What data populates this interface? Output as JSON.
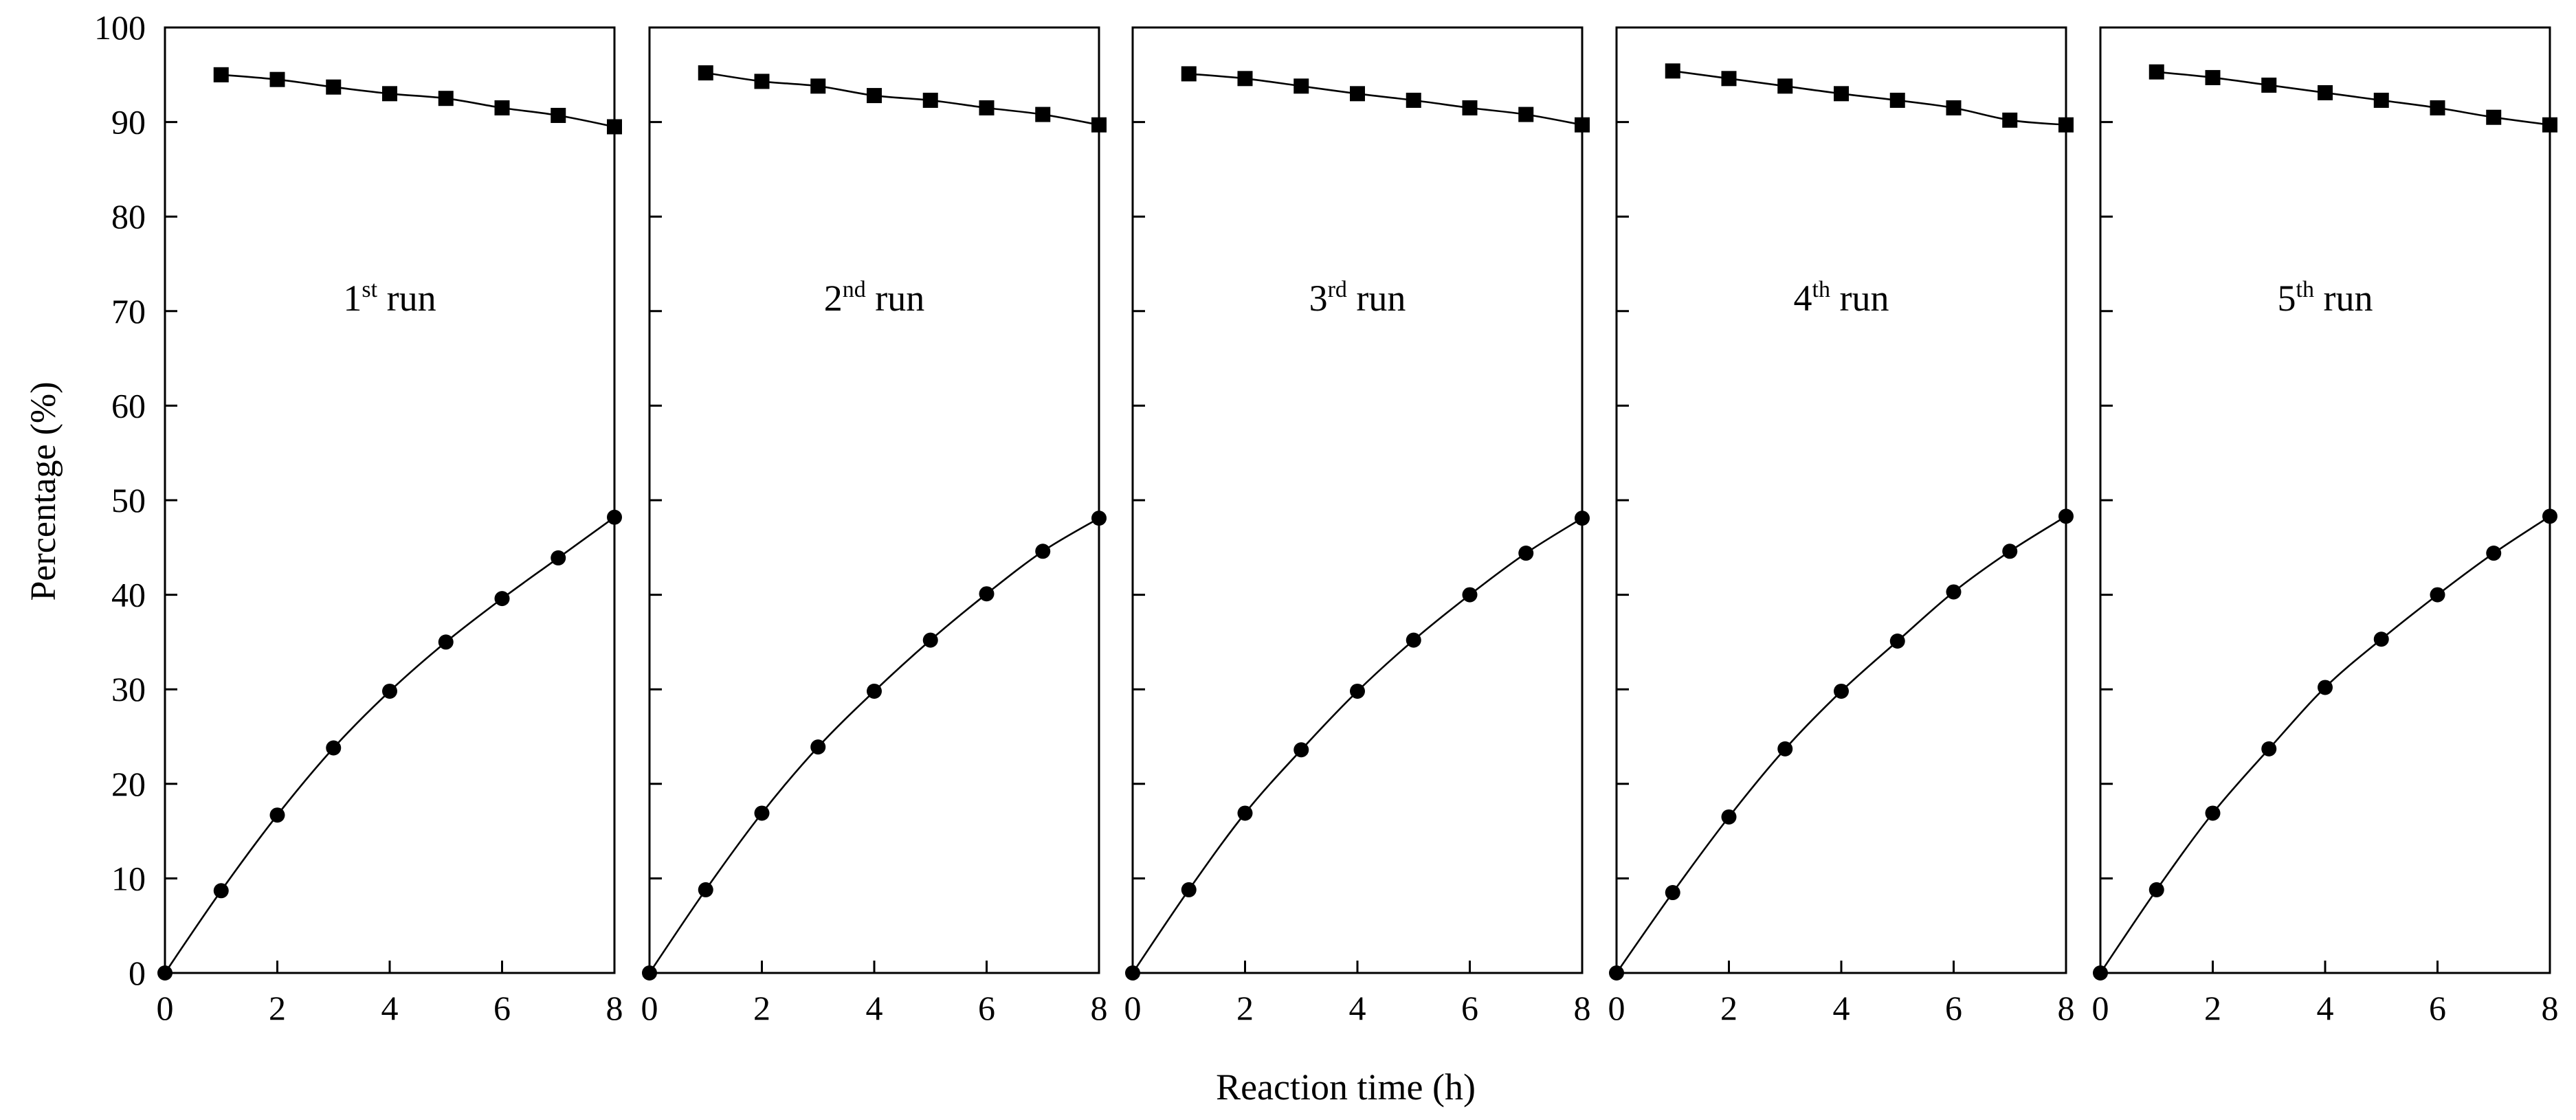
{
  "chart_data": {
    "type": "line",
    "ylabel": "Percentage (%)",
    "xlabel": "Reaction time (h)",
    "ylim": [
      0,
      100
    ],
    "xlim": [
      0,
      8
    ],
    "y_ticks": [
      "0",
      "10",
      "20",
      "30",
      "40",
      "50",
      "60",
      "70",
      "80",
      "90",
      "100"
    ],
    "x_ticks": [
      "0",
      "2",
      "4",
      "6",
      "8"
    ],
    "panels": [
      {
        "run_number": "1",
        "run_suffix": "st",
        "run_word": "run",
        "series": [
          {
            "name": "squares",
            "marker": "square",
            "x": [
              1,
              2,
              3,
              4,
              5,
              6,
              7,
              8
            ],
            "values": [
              95.0,
              94.5,
              93.7,
              93.0,
              92.5,
              91.5,
              90.7,
              89.5
            ]
          },
          {
            "name": "circles",
            "marker": "circle",
            "x": [
              0,
              1,
              2,
              3,
              4,
              5,
              6,
              7,
              8
            ],
            "values": [
              0,
              8.7,
              16.7,
              23.8,
              29.8,
              35.0,
              39.6,
              43.9,
              48.2
            ]
          }
        ]
      },
      {
        "run_number": "2",
        "run_suffix": "nd",
        "run_word": "run",
        "series": [
          {
            "name": "squares",
            "marker": "square",
            "x": [
              1,
              2,
              3,
              4,
              5,
              6,
              7,
              8
            ],
            "values": [
              95.2,
              94.3,
              93.8,
              92.8,
              92.3,
              91.5,
              90.8,
              89.7
            ]
          },
          {
            "name": "circles",
            "marker": "circle",
            "x": [
              0,
              1,
              2,
              3,
              4,
              5,
              6,
              7,
              8
            ],
            "values": [
              0,
              8.8,
              16.9,
              23.9,
              29.8,
              35.2,
              40.1,
              44.6,
              48.1
            ]
          }
        ]
      },
      {
        "run_number": "3",
        "run_suffix": "rd",
        "run_word": "run",
        "series": [
          {
            "name": "squares",
            "marker": "square",
            "x": [
              1,
              2,
              3,
              4,
              5,
              6,
              7,
              8
            ],
            "values": [
              95.1,
              94.6,
              93.8,
              93.0,
              92.3,
              91.5,
              90.8,
              89.7
            ]
          },
          {
            "name": "circles",
            "marker": "circle",
            "x": [
              0,
              1,
              2,
              3,
              4,
              5,
              6,
              7,
              8
            ],
            "values": [
              0,
              8.8,
              16.9,
              23.6,
              29.8,
              35.2,
              40.0,
              44.4,
              48.1
            ]
          }
        ]
      },
      {
        "run_number": "4",
        "run_suffix": "th",
        "run_word": "run",
        "series": [
          {
            "name": "squares",
            "marker": "square",
            "x": [
              1,
              2,
              3,
              4,
              5,
              6,
              7,
              8
            ],
            "values": [
              95.4,
              94.6,
              93.8,
              93.0,
              92.3,
              91.5,
              90.2,
              89.7
            ]
          },
          {
            "name": "circles",
            "marker": "circle",
            "x": [
              0,
              1,
              2,
              3,
              4,
              5,
              6,
              7,
              8
            ],
            "values": [
              0,
              8.5,
              16.5,
              23.7,
              29.8,
              35.1,
              40.3,
              44.6,
              48.3
            ]
          }
        ]
      },
      {
        "run_number": "5",
        "run_suffix": "th",
        "run_word": "run",
        "series": [
          {
            "name": "squares",
            "marker": "square",
            "x": [
              1,
              2,
              3,
              4,
              5,
              6,
              7,
              8
            ],
            "values": [
              95.3,
              94.7,
              93.9,
              93.1,
              92.3,
              91.5,
              90.5,
              89.7
            ]
          },
          {
            "name": "circles",
            "marker": "circle",
            "x": [
              0,
              1,
              2,
              3,
              4,
              5,
              6,
              7,
              8
            ],
            "values": [
              0,
              8.8,
              16.9,
              23.7,
              30.2,
              35.3,
              40.0,
              44.4,
              48.3
            ]
          }
        ]
      }
    ]
  }
}
